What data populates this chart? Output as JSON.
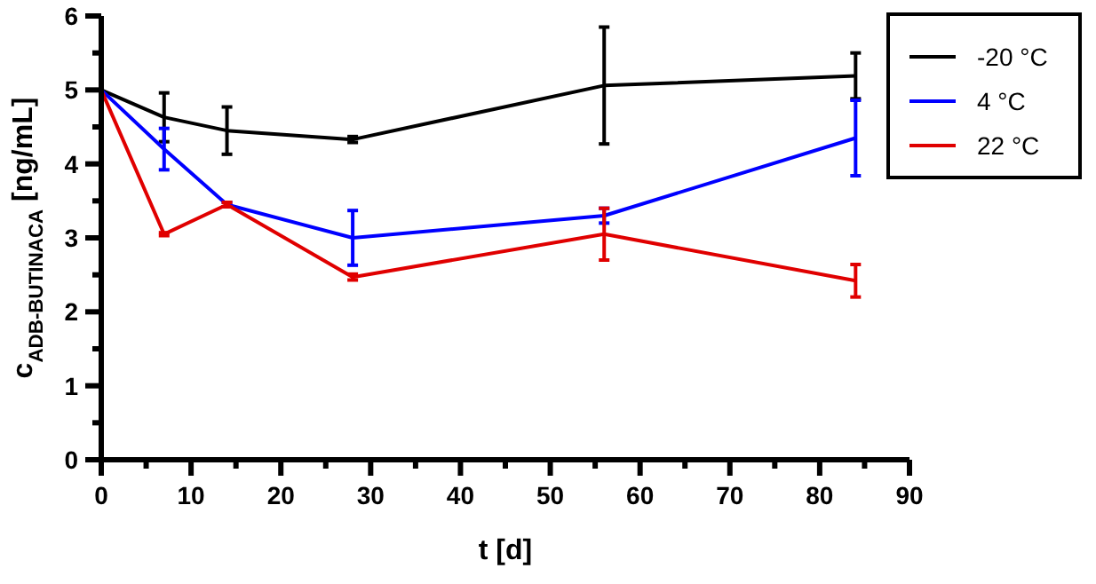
{
  "chart_data": {
    "type": "line",
    "xlabel": "t [d]",
    "ylabel": "c$_{ADB-BUTINACA}$ [ng/mL]",
    "x": [
      0,
      7,
      14,
      28,
      56,
      84
    ],
    "xlim": [
      0,
      90
    ],
    "xticks": [
      0,
      {
        "value": 5,
        "label": null
      },
      10,
      {
        "value": 15,
        "label": null
      },
      20,
      {
        "value": 25,
        "label": null
      },
      30,
      {
        "value": 35,
        "label": null
      },
      40,
      {
        "value": 45,
        "label": null
      },
      50,
      {
        "value": 55,
        "label": null
      },
      60,
      {
        "value": 65,
        "label": null
      },
      70,
      {
        "value": 75,
        "label": null
      },
      80,
      {
        "value": 85,
        "label": null
      },
      90
    ],
    "ylim": [
      0,
      6
    ],
    "yticks": [
      0,
      {
        "value": 0.5,
        "label": null
      },
      1,
      {
        "value": 1.5,
        "label": null
      },
      2,
      {
        "value": 2.5,
        "label": null
      },
      3,
      {
        "value": 3.5,
        "label": null
      },
      4,
      {
        "value": 4.5,
        "label": null
      },
      5,
      {
        "value": 5.5,
        "label": null
      },
      6
    ],
    "series": [
      {
        "name": "-20 °C",
        "color": "#000000",
        "values": [
          5,
          4.63,
          4.45,
          4.33,
          5.06,
          5.19
        ],
        "errors": [
          null,
          0.33,
          0.32,
          0.04,
          0.79,
          0.31
        ]
      },
      {
        "name": "4 °C",
        "color": "#0000ff",
        "values": [
          5,
          4.2,
          3.45,
          3.0,
          3.3,
          4.35
        ],
        "errors": [
          null,
          0.28,
          0.03,
          0.37,
          0.1,
          0.51
        ]
      },
      {
        "name": "22 °C",
        "color": "#e00000",
        "values": [
          5,
          3.05,
          3.45,
          2.47,
          3.05,
          2.42
        ],
        "errors": [
          null,
          0.02,
          0.03,
          0.04,
          0.35,
          0.22
        ]
      }
    ],
    "legend": "top right",
    "grid": false,
    "marker": "none",
    "line_style": "solid"
  }
}
